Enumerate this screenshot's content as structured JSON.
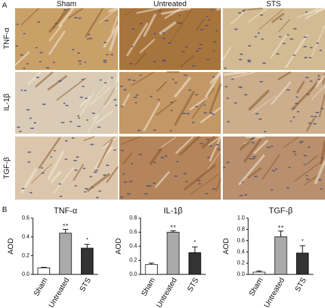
{
  "panel_a": {
    "label": "A",
    "columns": [
      "Sham",
      "Untreated",
      "STS"
    ],
    "rows": [
      "TNF-α",
      "IL-1β",
      "TGF-β"
    ]
  },
  "panel_b": {
    "label": "B"
  },
  "chart_data": [
    {
      "type": "bar",
      "title": "TNF-α",
      "y_label": "AOD",
      "categories": [
        "Sham",
        "Untreated",
        "STS"
      ],
      "values": [
        0.07,
        0.44,
        0.28
      ],
      "errors": [
        0.005,
        0.04,
        0.04
      ],
      "annotations": [
        null,
        "++",
        "*"
      ],
      "colors": [
        "#ffffff",
        "#aaaaaa",
        "#333333"
      ],
      "ylim": [
        0,
        0.6
      ],
      "yticks": [
        {
          "value": 0,
          "label": "0.0"
        },
        0.2,
        0.4,
        0.6
      ]
    },
    {
      "type": "bar",
      "title": "IL-1β",
      "y_label": "AOD",
      "categories": [
        "Sham",
        "Untreated",
        "STS"
      ],
      "values": [
        0.14,
        0.6,
        0.31
      ],
      "errors": [
        0.02,
        0.02,
        0.08
      ],
      "annotations": [
        null,
        "++",
        "*"
      ],
      "colors": [
        "#ffffff",
        "#aaaaaa",
        "#333333"
      ],
      "ylim": [
        0,
        0.8
      ],
      "yticks": [
        {
          "value": 0,
          "label": "0.0"
        },
        0.2,
        0.4,
        0.6,
        0.8
      ]
    },
    {
      "type": "bar",
      "title": "TGF-β",
      "y_label": "AOD",
      "categories": [
        "Sham",
        "Untreated",
        "STS"
      ],
      "values": [
        0.04,
        0.67,
        0.38
      ],
      "errors": [
        0.02,
        0.1,
        0.13
      ],
      "annotations": [
        null,
        "++",
        "*"
      ],
      "colors": [
        "#ffffff",
        "#aaaaaa",
        "#333333"
      ],
      "ylim": [
        0,
        1
      ],
      "yticks": [
        {
          "value": 0,
          "label": "0.0"
        },
        0.2,
        0.4,
        0.6,
        0.8,
        {
          "value": 1,
          "label": "1.0"
        }
      ]
    }
  ]
}
